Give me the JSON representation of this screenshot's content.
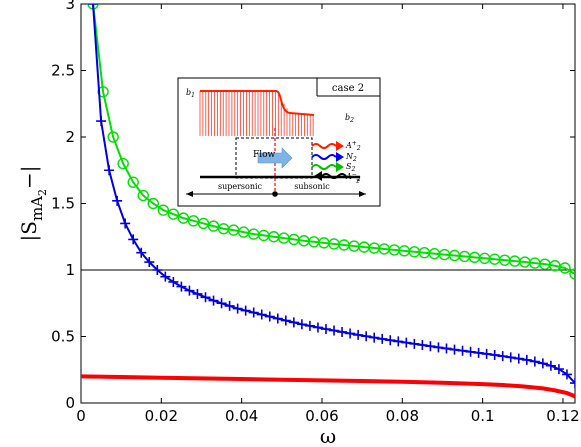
{
  "chart_data": {
    "type": "line",
    "title": "",
    "xlabel": "ω",
    "ylabel_main": "|S",
    "ylabel_sub": "mA",
    "ylabel_subsub": "2",
    "ylabel_close": "−|",
    "xlim": [
      0,
      0.123
    ],
    "ylim": [
      0,
      3
    ],
    "xticks": [
      0,
      0.02,
      0.04,
      0.06,
      0.08,
      0.1,
      0.12
    ],
    "xtick_labels": [
      "0",
      "0.02",
      "0.04",
      "0.06",
      "0.08",
      "0.1",
      "0.12"
    ],
    "yticks": [
      0,
      0.5,
      1,
      1.5,
      2,
      2.5,
      3
    ],
    "ytick_labels": [
      "0",
      "0.5",
      "1",
      "1.5",
      "2",
      "2.5",
      "3"
    ],
    "grid": false,
    "reference_line": {
      "y": 1,
      "color": "#000000"
    },
    "series": [
      {
        "color": "#00e000",
        "marker": "circle",
        "x": [
          0.003,
          0.0055,
          0.008,
          0.0105,
          0.013,
          0.0155,
          0.018,
          0.0205,
          0.023,
          0.0255,
          0.028,
          0.0305,
          0.033,
          0.0355,
          0.038,
          0.0405,
          0.043,
          0.0455,
          0.048,
          0.0505,
          0.053,
          0.0555,
          0.058,
          0.0605,
          0.063,
          0.0655,
          0.068,
          0.0705,
          0.073,
          0.0755,
          0.078,
          0.0805,
          0.083,
          0.0855,
          0.088,
          0.0905,
          0.093,
          0.0955,
          0.098,
          0.1005,
          0.103,
          0.1055,
          0.108,
          0.1105,
          0.113,
          0.1155,
          0.118,
          0.1205,
          0.123
        ],
        "y": [
          3.0,
          2.34,
          2.0,
          1.8,
          1.66,
          1.56,
          1.5,
          1.45,
          1.42,
          1.39,
          1.37,
          1.35,
          1.33,
          1.31,
          1.3,
          1.285,
          1.27,
          1.26,
          1.25,
          1.24,
          1.23,
          1.22,
          1.212,
          1.204,
          1.196,
          1.188,
          1.18,
          1.172,
          1.165,
          1.158,
          1.151,
          1.144,
          1.137,
          1.13,
          1.123,
          1.116,
          1.109,
          1.102,
          1.095,
          1.088,
          1.081,
          1.074,
          1.067,
          1.06,
          1.052,
          1.044,
          1.032,
          1.015,
          0.97
        ]
      },
      {
        "color": "#0000e0",
        "marker": "plus",
        "x": [
          0.003,
          0.005,
          0.007,
          0.009,
          0.011,
          0.013,
          0.015,
          0.017,
          0.019,
          0.021,
          0.023,
          0.025,
          0.027,
          0.029,
          0.031,
          0.033,
          0.035,
          0.037,
          0.039,
          0.041,
          0.043,
          0.045,
          0.047,
          0.049,
          0.051,
          0.053,
          0.055,
          0.057,
          0.059,
          0.061,
          0.063,
          0.065,
          0.067,
          0.069,
          0.071,
          0.073,
          0.075,
          0.077,
          0.079,
          0.081,
          0.083,
          0.085,
          0.087,
          0.089,
          0.091,
          0.093,
          0.095,
          0.097,
          0.099,
          0.101,
          0.103,
          0.105,
          0.107,
          0.109,
          0.111,
          0.113,
          0.115,
          0.117,
          0.119,
          0.121,
          0.123
        ],
        "y": [
          3.0,
          2.12,
          1.75,
          1.52,
          1.35,
          1.23,
          1.13,
          1.06,
          1.0,
          0.95,
          0.91,
          0.875,
          0.845,
          0.82,
          0.795,
          0.77,
          0.75,
          0.73,
          0.71,
          0.695,
          0.68,
          0.665,
          0.65,
          0.635,
          0.62,
          0.606,
          0.592,
          0.58,
          0.568,
          0.556,
          0.545,
          0.534,
          0.523,
          0.512,
          0.502,
          0.492,
          0.482,
          0.472,
          0.463,
          0.454,
          0.445,
          0.436,
          0.427,
          0.418,
          0.41,
          0.401,
          0.393,
          0.385,
          0.377,
          0.369,
          0.361,
          0.352,
          0.343,
          0.334,
          0.324,
          0.312,
          0.298,
          0.28,
          0.255,
          0.215,
          0.15
        ]
      },
      {
        "color": "#ff0000",
        "marker": "none",
        "x": [
          0,
          0.01,
          0.02,
          0.03,
          0.04,
          0.05,
          0.06,
          0.07,
          0.08,
          0.09,
          0.1,
          0.105,
          0.11,
          0.115,
          0.118,
          0.121,
          0.123
        ],
        "y": [
          0.2,
          0.195,
          0.19,
          0.185,
          0.18,
          0.175,
          0.17,
          0.165,
          0.16,
          0.152,
          0.142,
          0.135,
          0.125,
          0.11,
          0.095,
          0.075,
          0.05
        ]
      }
    ],
    "inset": {
      "case_label": "case 2",
      "b1": "b",
      "b1_sub": "1",
      "b2": "b",
      "b2_sub": "2",
      "flow_label": "Flow",
      "supersonic_label": "supersonic",
      "subsonic_label": "subsonic",
      "z_label": "z",
      "wave_labels": [
        {
          "base": "A",
          "sub": "2",
          "sup": "+",
          "color": "#ff2000"
        },
        {
          "base": "N",
          "sub": "2",
          "sup": "",
          "color": "#0000ff"
        },
        {
          "base": "S",
          "sub": "2",
          "sup": "",
          "color": "#00c000"
        },
        {
          "base": "A",
          "sub": "2",
          "sup": "−",
          "color": "#ff0000"
        }
      ]
    }
  }
}
